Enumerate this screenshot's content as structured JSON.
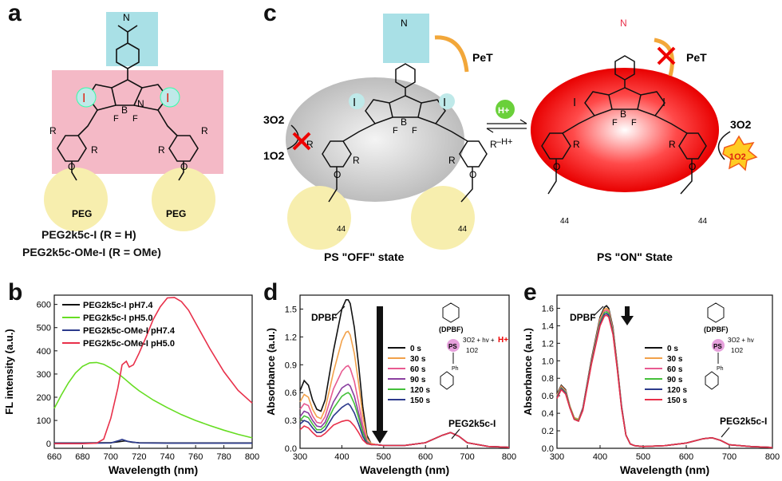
{
  "panels": {
    "a": "a",
    "b": "b",
    "c": "c",
    "d": "d",
    "e": "e"
  },
  "panel_a": {
    "compound_1": "PEG2k5c-I (R = H)",
    "compound_2": "PEG2k5c-OMe-I (R = OMe)",
    "atoms": {
      "I": "I",
      "R": "R",
      "B": "B",
      "N": "N",
      "F": "F",
      "O": "O",
      "PEG": "PEG"
    }
  },
  "panel_c": {
    "pet": "PeT",
    "o2_triplet": "3O2",
    "o2_singlet": "1O2",
    "proton": "H+",
    "minus_proton": "–H+",
    "off_state": "PS \"OFF\" state",
    "on_state": "PS \"ON\" State",
    "repeat": "44",
    "atoms": {
      "I": "I",
      "R": "R",
      "B": "B",
      "N": "N",
      "F": "F",
      "O": "O"
    }
  },
  "chart_data": [
    {
      "id": "b",
      "type": "line",
      "xlabel": "Wavelength (nm)",
      "ylabel": "FL intensity (a.u.)",
      "xlim": [
        660,
        800
      ],
      "ylim": [
        -20,
        640
      ],
      "xticks": [
        660,
        680,
        700,
        720,
        740,
        760,
        780,
        800
      ],
      "yticks": [
        0,
        100,
        200,
        300,
        400,
        500,
        600
      ],
      "grid": false,
      "legend": "top-left",
      "series": [
        {
          "name": "PEG2k5c-I pH7.4",
          "color": "#111111",
          "x": [
            660,
            680,
            700,
            705,
            710,
            715,
            720,
            740,
            760,
            780,
            800
          ],
          "y": [
            3,
            3,
            4,
            8,
            12,
            6,
            4,
            3,
            3,
            3,
            3
          ]
        },
        {
          "name": "PEG2k5c-I pH5.0",
          "color": "#66dd22",
          "x": [
            660,
            665,
            670,
            675,
            680,
            685,
            690,
            695,
            700,
            705,
            710,
            715,
            720,
            730,
            740,
            750,
            760,
            770,
            780,
            790,
            800
          ],
          "y": [
            152,
            210,
            262,
            305,
            333,
            348,
            350,
            342,
            325,
            303,
            278,
            252,
            228,
            188,
            155,
            125,
            100,
            78,
            58,
            40,
            25
          ]
        },
        {
          "name": "PEG2k5c-OMe-I pH7.4",
          "color": "#2c3a8c",
          "x": [
            660,
            680,
            700,
            705,
            708,
            712,
            720,
            740,
            760,
            780,
            800
          ],
          "y": [
            2,
            2,
            3,
            12,
            18,
            10,
            3,
            2,
            2,
            2,
            2
          ]
        },
        {
          "name": "PEG2k5c-OMe-I pH5.0",
          "color": "#e8304a",
          "x": [
            660,
            680,
            690,
            695,
            700,
            705,
            708,
            711,
            713,
            716,
            720,
            725,
            730,
            735,
            740,
            745,
            750,
            755,
            760,
            770,
            780,
            790,
            800
          ],
          "y": [
            0,
            0,
            2,
            20,
            110,
            240,
            340,
            355,
            330,
            340,
            390,
            460,
            535,
            590,
            628,
            630,
            612,
            575,
            520,
            410,
            310,
            230,
            175
          ]
        }
      ]
    },
    {
      "id": "d",
      "type": "line",
      "xlabel": "Wavelength (nm)",
      "ylabel": "Absorbance (a.u.)",
      "xlim": [
        300,
        800
      ],
      "ylim": [
        0,
        1.65
      ],
      "xticks": [
        300,
        400,
        500,
        600,
        700,
        800
      ],
      "yticks": [
        0.0,
        0.3,
        0.6,
        0.9,
        1.2,
        1.5
      ],
      "grid": false,
      "legend": "right",
      "annotations": {
        "dpbf": "DPBF",
        "product": "PEG2k5c-I",
        "dpbf_scheme": "(DPBF)",
        "ps": "PS",
        "reaction": "3O2 + hv + ",
        "proton": "H+",
        "singlet": "1O2",
        "ph": "Ph"
      },
      "series": [
        {
          "name": "0 s",
          "color": "#111111",
          "x": [
            300,
            310,
            320,
            330,
            340,
            350,
            360,
            380,
            400,
            410,
            415,
            420,
            430,
            440,
            450,
            460,
            470,
            480,
            500,
            550,
            600,
            640,
            660,
            680,
            700,
            750,
            800
          ],
          "y": [
            0.62,
            0.73,
            0.68,
            0.52,
            0.42,
            0.4,
            0.52,
            1.05,
            1.5,
            1.6,
            1.6,
            1.56,
            1.3,
            0.9,
            0.45,
            0.14,
            0.05,
            0.04,
            0.03,
            0.03,
            0.06,
            0.14,
            0.17,
            0.13,
            0.06,
            0.02,
            0.01
          ]
        },
        {
          "name": "30 s",
          "color": "#f2a14a",
          "x": [
            300,
            310,
            320,
            330,
            340,
            350,
            360,
            380,
            400,
            410,
            415,
            420,
            430,
            440,
            450,
            460,
            470,
            480,
            500,
            550,
            600,
            640,
            660,
            680,
            700,
            750,
            800
          ],
          "y": [
            0.5,
            0.58,
            0.55,
            0.42,
            0.34,
            0.32,
            0.42,
            0.82,
            1.16,
            1.25,
            1.26,
            1.22,
            1.02,
            0.7,
            0.35,
            0.11,
            0.05,
            0.04,
            0.03,
            0.03,
            0.06,
            0.14,
            0.17,
            0.13,
            0.06,
            0.02,
            0.01
          ]
        },
        {
          "name": "60 s",
          "color": "#e85a90",
          "x": [
            300,
            310,
            320,
            330,
            340,
            350,
            360,
            380,
            400,
            410,
            415,
            420,
            430,
            440,
            450,
            460,
            470,
            480,
            500,
            550,
            600,
            640,
            660,
            680,
            700,
            750,
            800
          ],
          "y": [
            0.42,
            0.48,
            0.46,
            0.35,
            0.28,
            0.27,
            0.34,
            0.64,
            0.83,
            0.88,
            0.89,
            0.86,
            0.72,
            0.49,
            0.25,
            0.08,
            0.04,
            0.04,
            0.03,
            0.03,
            0.06,
            0.14,
            0.17,
            0.13,
            0.06,
            0.02,
            0.01
          ]
        },
        {
          "name": "90 s",
          "color": "#8a3fa0",
          "x": [
            300,
            310,
            320,
            330,
            340,
            350,
            360,
            380,
            400,
            410,
            415,
            420,
            430,
            440,
            450,
            460,
            470,
            480,
            500,
            550,
            600,
            640,
            660,
            680,
            700,
            750,
            800
          ],
          "y": [
            0.34,
            0.4,
            0.38,
            0.3,
            0.24,
            0.23,
            0.28,
            0.5,
            0.65,
            0.68,
            0.69,
            0.67,
            0.56,
            0.38,
            0.19,
            0.07,
            0.04,
            0.04,
            0.03,
            0.03,
            0.06,
            0.14,
            0.17,
            0.13,
            0.06,
            0.02,
            0.01
          ]
        },
        {
          "name": "120 s",
          "color": "#44c03a",
          "x": [
            300,
            310,
            320,
            330,
            340,
            350,
            360,
            380,
            400,
            410,
            415,
            420,
            430,
            440,
            450,
            460,
            470,
            480,
            500,
            550,
            600,
            640,
            660,
            680,
            700,
            750,
            800
          ],
          "y": [
            0.3,
            0.35,
            0.33,
            0.26,
            0.2,
            0.2,
            0.24,
            0.43,
            0.56,
            0.59,
            0.6,
            0.58,
            0.48,
            0.33,
            0.17,
            0.06,
            0.04,
            0.04,
            0.03,
            0.03,
            0.06,
            0.14,
            0.17,
            0.13,
            0.06,
            0.02,
            0.01
          ]
        },
        {
          "name": "150 s",
          "color": "#2c3a8c",
          "x": [
            300,
            310,
            320,
            330,
            340,
            350,
            360,
            380,
            400,
            410,
            415,
            420,
            430,
            440,
            450,
            460,
            470,
            480,
            500,
            550,
            600,
            640,
            660,
            680,
            700,
            750,
            800
          ],
          "y": [
            0.26,
            0.3,
            0.28,
            0.22,
            0.17,
            0.17,
            0.2,
            0.35,
            0.44,
            0.47,
            0.48,
            0.46,
            0.38,
            0.26,
            0.13,
            0.05,
            0.04,
            0.04,
            0.03,
            0.03,
            0.06,
            0.14,
            0.17,
            0.13,
            0.06,
            0.02,
            0.01
          ]
        },
        {
          "name": "",
          "color": "#e8304a",
          "x": [
            300,
            310,
            320,
            330,
            340,
            350,
            360,
            380,
            400,
            410,
            415,
            420,
            430,
            440,
            450,
            460,
            470,
            480,
            500,
            550,
            600,
            640,
            660,
            680,
            700,
            750,
            800
          ],
          "y": [
            0.2,
            0.24,
            0.22,
            0.17,
            0.13,
            0.13,
            0.16,
            0.25,
            0.29,
            0.3,
            0.3,
            0.29,
            0.24,
            0.17,
            0.09,
            0.05,
            0.04,
            0.04,
            0.03,
            0.03,
            0.06,
            0.14,
            0.17,
            0.13,
            0.06,
            0.02,
            0.01
          ]
        }
      ]
    },
    {
      "id": "e",
      "type": "line",
      "xlabel": "Wavelength (nm)",
      "ylabel": "Absorbance (a.u.)",
      "xlim": [
        300,
        800
      ],
      "ylim": [
        0,
        1.75
      ],
      "xticks": [
        300,
        400,
        500,
        600,
        700,
        800
      ],
      "yticks": [
        0.0,
        0.2,
        0.4,
        0.6,
        0.8,
        1.0,
        1.2,
        1.4,
        1.6
      ],
      "grid": false,
      "legend": "right",
      "annotations": {
        "dpbf": "DPBF",
        "product": "PEG2k5c-I",
        "dpbf_scheme": "(DPBF)",
        "ps": "PS",
        "reaction": "3O2 + hv",
        "singlet": "1O2",
        "ph": "Ph"
      },
      "series": [
        {
          "name": "0 s",
          "color": "#111111",
          "x": [
            300,
            310,
            320,
            330,
            340,
            350,
            360,
            380,
            400,
            410,
            415,
            420,
            430,
            440,
            450,
            460,
            470,
            480,
            500,
            550,
            600,
            640,
            660,
            680,
            700,
            750,
            800
          ],
          "y": [
            0.62,
            0.72,
            0.67,
            0.48,
            0.35,
            0.33,
            0.46,
            1.02,
            1.5,
            1.61,
            1.63,
            1.6,
            1.38,
            0.95,
            0.48,
            0.15,
            0.05,
            0.03,
            0.02,
            0.03,
            0.06,
            0.11,
            0.12,
            0.09,
            0.04,
            0.02,
            0.01
          ]
        },
        {
          "name": "30 s",
          "color": "#f2a14a",
          "x": [
            300,
            310,
            320,
            330,
            340,
            350,
            360,
            380,
            400,
            410,
            415,
            420,
            430,
            440,
            450,
            460,
            470,
            480,
            500,
            550,
            600,
            640,
            660,
            680,
            700,
            750,
            800
          ],
          "y": [
            0.61,
            0.71,
            0.66,
            0.48,
            0.35,
            0.33,
            0.45,
            1.0,
            1.48,
            1.59,
            1.6,
            1.58,
            1.36,
            0.94,
            0.47,
            0.15,
            0.05,
            0.03,
            0.02,
            0.03,
            0.06,
            0.11,
            0.12,
            0.09,
            0.04,
            0.02,
            0.01
          ]
        },
        {
          "name": "60 s",
          "color": "#e85a90",
          "x": [
            300,
            310,
            320,
            330,
            340,
            350,
            360,
            380,
            400,
            410,
            415,
            420,
            430,
            440,
            450,
            460,
            470,
            480,
            500,
            550,
            600,
            640,
            660,
            680,
            700,
            750,
            800
          ],
          "y": [
            0.6,
            0.7,
            0.65,
            0.47,
            0.34,
            0.32,
            0.45,
            0.99,
            1.46,
            1.57,
            1.58,
            1.56,
            1.35,
            0.93,
            0.47,
            0.15,
            0.05,
            0.03,
            0.02,
            0.03,
            0.06,
            0.11,
            0.12,
            0.09,
            0.04,
            0.02,
            0.01
          ]
        },
        {
          "name": "90 s",
          "color": "#44c03a",
          "x": [
            300,
            310,
            320,
            330,
            340,
            350,
            360,
            380,
            400,
            410,
            415,
            420,
            430,
            440,
            450,
            460,
            470,
            480,
            500,
            550,
            600,
            640,
            660,
            680,
            700,
            750,
            800
          ],
          "y": [
            0.59,
            0.69,
            0.64,
            0.47,
            0.34,
            0.32,
            0.44,
            0.98,
            1.44,
            1.55,
            1.56,
            1.54,
            1.33,
            0.92,
            0.46,
            0.15,
            0.05,
            0.03,
            0.02,
            0.03,
            0.06,
            0.11,
            0.12,
            0.09,
            0.04,
            0.02,
            0.01
          ]
        },
        {
          "name": "120 s",
          "color": "#2c3a8c",
          "x": [
            300,
            310,
            320,
            330,
            340,
            350,
            360,
            380,
            400,
            410,
            415,
            420,
            430,
            440,
            450,
            460,
            470,
            480,
            500,
            550,
            600,
            640,
            660,
            680,
            700,
            750,
            800
          ],
          "y": [
            0.58,
            0.68,
            0.63,
            0.46,
            0.33,
            0.31,
            0.44,
            0.97,
            1.42,
            1.53,
            1.54,
            1.52,
            1.31,
            0.91,
            0.46,
            0.15,
            0.05,
            0.03,
            0.02,
            0.03,
            0.06,
            0.11,
            0.12,
            0.09,
            0.04,
            0.02,
            0.01
          ]
        },
        {
          "name": "150 s",
          "color": "#e8304a",
          "x": [
            300,
            310,
            320,
            330,
            340,
            350,
            360,
            380,
            400,
            410,
            415,
            420,
            430,
            440,
            450,
            460,
            470,
            480,
            500,
            550,
            600,
            640,
            660,
            680,
            700,
            750,
            800
          ],
          "y": [
            0.57,
            0.67,
            0.62,
            0.46,
            0.33,
            0.31,
            0.43,
            0.96,
            1.4,
            1.51,
            1.52,
            1.5,
            1.3,
            0.9,
            0.45,
            0.15,
            0.05,
            0.03,
            0.02,
            0.03,
            0.06,
            0.11,
            0.12,
            0.09,
            0.04,
            0.02,
            0.01
          ]
        }
      ]
    }
  ]
}
